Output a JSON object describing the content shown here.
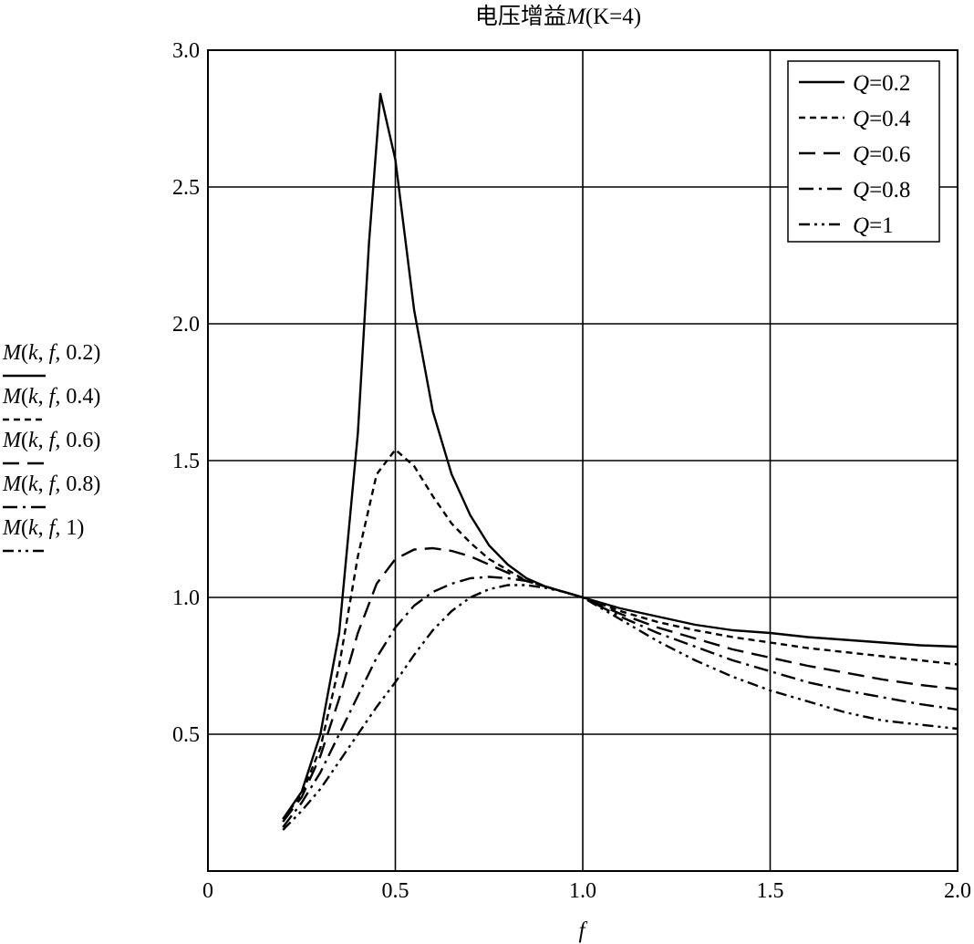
{
  "chart_data": {
    "type": "line",
    "title": "电压增益M(K=4)",
    "title_parts": {
      "prefix": "电压增益",
      "symbol": "M",
      "args": "(K=4)"
    },
    "xlabel": "f",
    "xlim": [
      0,
      2.0
    ],
    "ylim": [
      0,
      3.0
    ],
    "x_ticks": [
      {
        "value": 0,
        "label": "0"
      },
      {
        "value": 0.5,
        "label": "0.5"
      },
      {
        "value": 1.0,
        "label": "1.0"
      },
      {
        "value": 1.5,
        "label": "1.5"
      },
      {
        "value": 2.0,
        "label": "2.0"
      }
    ],
    "y_ticks": [
      {
        "value": 0.5,
        "label": "0.5"
      },
      {
        "value": 1.0,
        "label": "1.0"
      },
      {
        "value": 1.5,
        "label": "1.5"
      },
      {
        "value": 2.0,
        "label": "2.0"
      },
      {
        "value": 2.5,
        "label": "2.5"
      },
      {
        "value": 3.0,
        "label": "3.0"
      }
    ],
    "grid": true,
    "legend_position": "top-right",
    "y_axis_labels": [
      "M(k, f, 0.2)",
      "M(k, f, 0.4)",
      "M(k, f, 0.6)",
      "M(k, f, 0.8)",
      "M(k, f, 1)"
    ],
    "series": [
      {
        "name": "Q=0.2",
        "legend_symbol": "Q",
        "legend_value": "=0.2",
        "dash": "solid",
        "x": [
          0.2,
          0.25,
          0.3,
          0.35,
          0.4,
          0.43,
          0.46,
          0.5,
          0.55,
          0.6,
          0.65,
          0.7,
          0.75,
          0.8,
          0.85,
          0.9,
          0.95,
          1.0,
          1.1,
          1.2,
          1.3,
          1.4,
          1.5,
          1.6,
          1.7,
          1.8,
          1.9,
          2.0
        ],
        "y": [
          0.19,
          0.29,
          0.5,
          0.87,
          1.6,
          2.3,
          2.84,
          2.6,
          2.05,
          1.68,
          1.45,
          1.3,
          1.19,
          1.12,
          1.07,
          1.04,
          1.02,
          1.0,
          0.96,
          0.93,
          0.9,
          0.88,
          0.87,
          0.855,
          0.845,
          0.835,
          0.825,
          0.82
        ]
      },
      {
        "name": "Q=0.4",
        "legend_symbol": "Q",
        "legend_value": "=0.4",
        "dash": "short",
        "x": [
          0.2,
          0.25,
          0.3,
          0.35,
          0.4,
          0.45,
          0.5,
          0.55,
          0.6,
          0.65,
          0.7,
          0.75,
          0.8,
          0.85,
          0.9,
          0.95,
          1.0,
          1.1,
          1.2,
          1.3,
          1.4,
          1.5,
          1.6,
          1.7,
          1.8,
          1.9,
          2.0
        ],
        "y": [
          0.19,
          0.28,
          0.45,
          0.75,
          1.15,
          1.45,
          1.54,
          1.48,
          1.37,
          1.27,
          1.2,
          1.14,
          1.1,
          1.06,
          1.04,
          1.02,
          1.0,
          0.95,
          0.91,
          0.88,
          0.855,
          0.835,
          0.815,
          0.8,
          0.785,
          0.77,
          0.755
        ]
      },
      {
        "name": "Q=0.6",
        "legend_symbol": "Q",
        "legend_value": "=0.6",
        "dash": "long",
        "x": [
          0.2,
          0.25,
          0.3,
          0.35,
          0.4,
          0.45,
          0.5,
          0.55,
          0.6,
          0.65,
          0.7,
          0.75,
          0.8,
          0.85,
          0.9,
          0.95,
          1.0,
          1.1,
          1.2,
          1.3,
          1.4,
          1.5,
          1.6,
          1.7,
          1.8,
          1.9,
          2.0
        ],
        "y": [
          0.18,
          0.27,
          0.42,
          0.63,
          0.87,
          1.05,
          1.14,
          1.175,
          1.18,
          1.17,
          1.15,
          1.12,
          1.09,
          1.06,
          1.04,
          1.02,
          1.0,
          0.94,
          0.89,
          0.85,
          0.81,
          0.78,
          0.75,
          0.725,
          0.7,
          0.68,
          0.665
        ]
      },
      {
        "name": "Q=0.8",
        "legend_symbol": "Q",
        "legend_value": "=0.8",
        "dash": "dashdot",
        "x": [
          0.2,
          0.25,
          0.3,
          0.35,
          0.4,
          0.45,
          0.5,
          0.55,
          0.6,
          0.65,
          0.7,
          0.75,
          0.8,
          0.85,
          0.9,
          0.95,
          1.0,
          1.1,
          1.2,
          1.3,
          1.4,
          1.5,
          1.6,
          1.7,
          1.8,
          1.9,
          2.0
        ],
        "y": [
          0.16,
          0.25,
          0.36,
          0.5,
          0.64,
          0.78,
          0.89,
          0.97,
          1.02,
          1.05,
          1.07,
          1.075,
          1.07,
          1.06,
          1.04,
          1.02,
          1.0,
          0.93,
          0.87,
          0.82,
          0.77,
          0.73,
          0.69,
          0.66,
          0.635,
          0.61,
          0.59
        ]
      },
      {
        "name": "Q=1",
        "legend_symbol": "Q",
        "legend_value": "=1",
        "dash": "dashdotdot",
        "x": [
          0.2,
          0.25,
          0.3,
          0.35,
          0.4,
          0.45,
          0.5,
          0.55,
          0.6,
          0.65,
          0.7,
          0.75,
          0.8,
          0.85,
          0.9,
          0.95,
          1.0,
          1.1,
          1.2,
          1.3,
          1.4,
          1.5,
          1.6,
          1.7,
          1.8,
          1.9,
          2.0
        ],
        "y": [
          0.15,
          0.22,
          0.3,
          0.4,
          0.5,
          0.6,
          0.69,
          0.79,
          0.88,
          0.95,
          1.0,
          1.03,
          1.045,
          1.045,
          1.035,
          1.02,
          1.0,
          0.92,
          0.84,
          0.77,
          0.71,
          0.66,
          0.62,
          0.58,
          0.55,
          0.535,
          0.52
        ]
      }
    ]
  }
}
